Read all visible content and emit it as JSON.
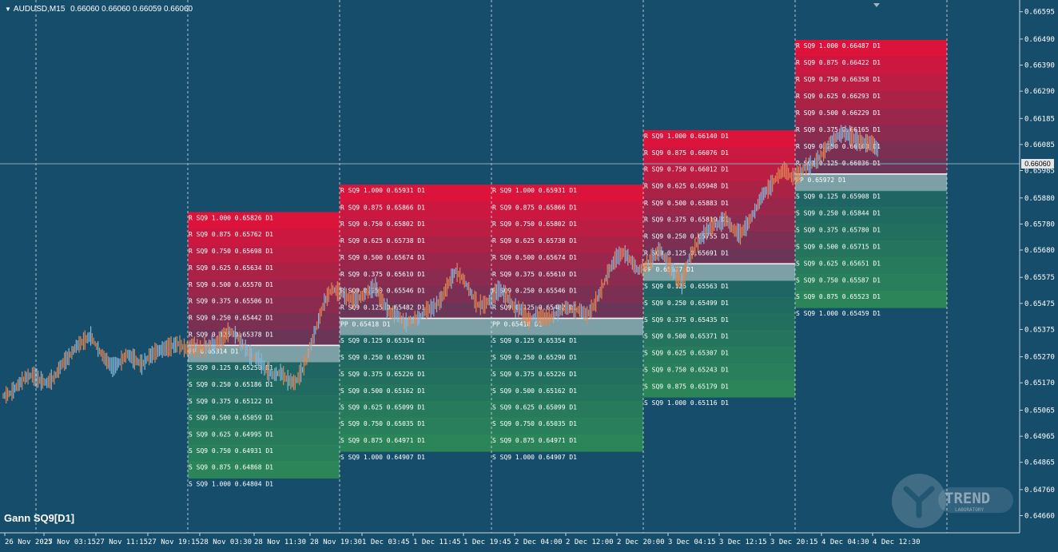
{
  "header": {
    "symbol": "AUDUSD,M15",
    "ohlc": "0.66060 0.66060 0.66059 0.66060"
  },
  "indicator_name": "Gann SQ9[D1]",
  "current_price": "0.66060",
  "price_axis": [
    "0.66595",
    "0.66490",
    "0.66390",
    "0.66290",
    "0.66185",
    "0.66085",
    "0.65985",
    "0.65880",
    "0.65780",
    "0.65680",
    "0.65575",
    "0.65475",
    "0.65375",
    "0.65270",
    "0.65170",
    "0.65065",
    "0.64965",
    "0.64865",
    "0.64760",
    "0.64660"
  ],
  "time_axis": [
    "26 Nov 2025",
    "27 Nov 03:15",
    "27 Nov 11:15",
    "27 Nov 19:15",
    "28 Nov 03:30",
    "28 Nov 11:30",
    "28 Nov 19:30",
    "1 Dec 03:45",
    "1 Dec 11:45",
    "1 Dec 19:45",
    "2 Dec 04:00",
    "2 Dec 12:00",
    "2 Dec 20:00",
    "3 Dec 04:15",
    "3 Dec 12:15",
    "3 Dec 20:15",
    "4 Dec 04:30",
    "4 Dec 12:30"
  ],
  "logo": {
    "text": "TREND",
    "subtext": "LABORATORY"
  },
  "colors": {
    "background": "#164d6b",
    "resistance": "#dc143c",
    "support": "#2e8b57",
    "pivot_line": "#ffffff",
    "candle_up": "#87b7d9",
    "candle_down": "#e08855"
  },
  "chart_data": {
    "type": "line",
    "title": "AUDUSD,M15",
    "ylim": [
      0.6461,
      0.6664
    ],
    "blocks": [
      {
        "levels": [
          {
            "label": "R SQ9 1.000 0.65826 D1",
            "price": 0.65826
          },
          {
            "label": "R SQ9 0.875 0.65762 D1",
            "price": 0.65762
          },
          {
            "label": "R SQ9 0.750 0.65698 D1",
            "price": 0.65698
          },
          {
            "label": "R SQ9 0.625 0.65634 D1",
            "price": 0.65634
          },
          {
            "label": "R SQ9 0.500 0.65570 D1",
            "price": 0.6557
          },
          {
            "label": "R SQ9 0.375 0.65506 D1",
            "price": 0.65506
          },
          {
            "label": "R SQ9 0.250 0.65442 D1",
            "price": 0.65442
          },
          {
            "label": "R SQ9 0.125 0.65378 D1",
            "price": 0.65378
          },
          {
            "label": "PP 0.65314 D1",
            "price": 0.65314
          },
          {
            "label": "S SQ9 0.125 0.65250 D1",
            "price": 0.6525
          },
          {
            "label": "S SQ9 0.250 0.65186 D1",
            "price": 0.65186
          },
          {
            "label": "S SQ9 0.375 0.65122 D1",
            "price": 0.65122
          },
          {
            "label": "S SQ9 0.500 0.65059 D1",
            "price": 0.65059
          },
          {
            "label": "S SQ9 0.625 0.64995 D1",
            "price": 0.64995
          },
          {
            "label": "S SQ9 0.750 0.64931 D1",
            "price": 0.64931
          },
          {
            "label": "S SQ9 0.875 0.64868 D1",
            "price": 0.64868
          },
          {
            "label": "S SQ9 1.000 0.64804 D1",
            "price": 0.64804
          }
        ]
      },
      {
        "levels": [
          {
            "label": "R SQ9 1.000 0.65931 D1",
            "price": 0.65931
          },
          {
            "label": "R SQ9 0.875 0.65866 D1",
            "price": 0.65866
          },
          {
            "label": "R SQ9 0.750 0.65802 D1",
            "price": 0.65802
          },
          {
            "label": "R SQ9 0.625 0.65738 D1",
            "price": 0.65738
          },
          {
            "label": "R SQ9 0.500 0.65674 D1",
            "price": 0.65674
          },
          {
            "label": "R SQ9 0.375 0.65610 D1",
            "price": 0.6561
          },
          {
            "label": "R SQ9 0.250 0.65546 D1",
            "price": 0.65546
          },
          {
            "label": "R SQ9 0.125 0.65482 D1",
            "price": 0.65482
          },
          {
            "label": "PP 0.65418 D1",
            "price": 0.65418
          },
          {
            "label": "S SQ9 0.125 0.65354 D1",
            "price": 0.65354
          },
          {
            "label": "S SQ9 0.250 0.65290 D1",
            "price": 0.6529
          },
          {
            "label": "S SQ9 0.375 0.65226 D1",
            "price": 0.65226
          },
          {
            "label": "S SQ9 0.500 0.65162 D1",
            "price": 0.65162
          },
          {
            "label": "S SQ9 0.625 0.65099 D1",
            "price": 0.65099
          },
          {
            "label": "S SQ9 0.750 0.65035 D1",
            "price": 0.65035
          },
          {
            "label": "S SQ9 0.875 0.64971 D1",
            "price": 0.64971
          },
          {
            "label": "S SQ9 1.000 0.64907 D1",
            "price": 0.64907
          }
        ]
      },
      {
        "levels": [
          {
            "label": "R SQ9 1.000 0.65931 D1",
            "price": 0.65931
          },
          {
            "label": "R SQ9 0.875 0.65866 D1",
            "price": 0.65866
          },
          {
            "label": "R SQ9 0.750 0.65802 D1",
            "price": 0.65802
          },
          {
            "label": "R SQ9 0.625 0.65738 D1",
            "price": 0.65738
          },
          {
            "label": "R SQ9 0.500 0.65674 D1",
            "price": 0.65674
          },
          {
            "label": "R SQ9 0.375 0.65610 D1",
            "price": 0.6561
          },
          {
            "label": "R SQ9 0.250 0.65546 D1",
            "price": 0.65546
          },
          {
            "label": "R SQ9 0.125 0.65482 D1",
            "price": 0.65482
          },
          {
            "label": "PP 0.65418 D1",
            "price": 0.65418
          },
          {
            "label": "S SQ9 0.125 0.65354 D1",
            "price": 0.65354
          },
          {
            "label": "S SQ9 0.250 0.65290 D1",
            "price": 0.6529
          },
          {
            "label": "S SQ9 0.375 0.65226 D1",
            "price": 0.65226
          },
          {
            "label": "S SQ9 0.500 0.65162 D1",
            "price": 0.65162
          },
          {
            "label": "S SQ9 0.625 0.65099 D1",
            "price": 0.65099
          },
          {
            "label": "S SQ9 0.750 0.65035 D1",
            "price": 0.65035
          },
          {
            "label": "S SQ9 0.875 0.64971 D1",
            "price": 0.64971
          },
          {
            "label": "S SQ9 1.000 0.64907 D1",
            "price": 0.64907
          }
        ]
      },
      {
        "levels": [
          {
            "label": "R SQ9 1.000 0.66140 D1",
            "price": 0.6614
          },
          {
            "label": "R SQ9 0.875 0.66076 D1",
            "price": 0.66076
          },
          {
            "label": "R SQ9 0.750 0.66012 D1",
            "price": 0.66012
          },
          {
            "label": "R SQ9 0.625 0.65948 D1",
            "price": 0.65948
          },
          {
            "label": "R SQ9 0.500 0.65883 D1",
            "price": 0.65883
          },
          {
            "label": "R SQ9 0.375 0.65819 D1",
            "price": 0.65819
          },
          {
            "label": "R SQ9 0.250 0.65755 D1",
            "price": 0.65755
          },
          {
            "label": "R SQ9 0.125 0.65691 D1",
            "price": 0.65691
          },
          {
            "label": "PP 0.65627 D1",
            "price": 0.65627
          },
          {
            "label": "S SQ9 0.125 0.65563 D1",
            "price": 0.65563
          },
          {
            "label": "S SQ9 0.250 0.65499 D1",
            "price": 0.65499
          },
          {
            "label": "S SQ9 0.375 0.65435 D1",
            "price": 0.65435
          },
          {
            "label": "S SQ9 0.500 0.65371 D1",
            "price": 0.65371
          },
          {
            "label": "S SQ9 0.625 0.65307 D1",
            "price": 0.65307
          },
          {
            "label": "S SQ9 0.750 0.65243 D1",
            "price": 0.65243
          },
          {
            "label": "S SQ9 0.875 0.65179 D1",
            "price": 0.65179
          },
          {
            "label": "S SQ9 1.000 0.65116 D1",
            "price": 0.65116
          }
        ]
      },
      {
        "levels": [
          {
            "label": "R SQ9 1.000 0.66487 D1",
            "price": 0.66487
          },
          {
            "label": "R SQ9 0.875 0.66422 D1",
            "price": 0.66422
          },
          {
            "label": "R SQ9 0.750 0.66358 D1",
            "price": 0.66358
          },
          {
            "label": "R SQ9 0.625 0.66293 D1",
            "price": 0.66293
          },
          {
            "label": "R SQ9 0.500 0.66229 D1",
            "price": 0.66229
          },
          {
            "label": "R SQ9 0.375 0.66165 D1",
            "price": 0.66165
          },
          {
            "label": "R SQ9 0.250 0.66100 D1",
            "price": 0.661
          },
          {
            "label": "R SQ9 0.125 0.66036 D1",
            "price": 0.66036
          },
          {
            "label": "PP 0.65972 D1",
            "price": 0.65972
          },
          {
            "label": "S SQ9 0.125 0.65908 D1",
            "price": 0.65908
          },
          {
            "label": "S SQ9 0.250 0.65844 D1",
            "price": 0.65844
          },
          {
            "label": "S SQ9 0.375 0.65780 D1",
            "price": 0.6578
          },
          {
            "label": "S SQ9 0.500 0.65715 D1",
            "price": 0.65715
          },
          {
            "label": "S SQ9 0.625 0.65651 D1",
            "price": 0.65651
          },
          {
            "label": "S SQ9 0.750 0.65587 D1",
            "price": 0.65587
          },
          {
            "label": "S SQ9 0.875 0.65523 D1",
            "price": 0.65523
          },
          {
            "label": "S SQ9 1.000 0.65459 D1",
            "price": 0.65459
          }
        ]
      }
    ],
    "price_path": [
      0.6512,
      0.6513,
      0.6516,
      0.6519,
      0.652,
      0.6518,
      0.6517,
      0.6519,
      0.6524,
      0.6527,
      0.6531,
      0.6533,
      0.6535,
      0.653,
      0.6526,
      0.6523,
      0.6525,
      0.6528,
      0.6526,
      0.6524,
      0.6527,
      0.6529,
      0.653,
      0.6531,
      0.6532,
      0.653,
      0.6531,
      0.653,
      0.6531,
      0.6532,
      0.6534,
      0.6537,
      0.6535,
      0.6531,
      0.6527,
      0.6526,
      0.6522,
      0.652,
      0.6521,
      0.6518,
      0.6517,
      0.6522,
      0.653,
      0.6539,
      0.6548,
      0.6553,
      0.6552,
      0.655,
      0.6549,
      0.655,
      0.6552,
      0.6554,
      0.6548,
      0.6544,
      0.6543,
      0.654,
      0.6541,
      0.6542,
      0.6545,
      0.6546,
      0.6549,
      0.6555,
      0.656,
      0.6557,
      0.6552,
      0.6547,
      0.6547,
      0.655,
      0.6553,
      0.655,
      0.6546,
      0.6545,
      0.6541,
      0.6543,
      0.6542,
      0.6542,
      0.6544,
      0.6546,
      0.6545,
      0.6545,
      0.6543,
      0.6547,
      0.6553,
      0.656,
      0.6565,
      0.6567,
      0.6564,
      0.656,
      0.6562,
      0.6565,
      0.6568,
      0.6563,
      0.6559,
      0.6555,
      0.6565,
      0.657,
      0.6574,
      0.6577,
      0.6578,
      0.658,
      0.6576,
      0.6574,
      0.6578,
      0.6583,
      0.6589,
      0.6592,
      0.6596,
      0.6599,
      0.6596,
      0.6597,
      0.66,
      0.6601,
      0.6604,
      0.6608,
      0.6611,
      0.6613,
      0.6612,
      0.661,
      0.6609,
      0.6609,
      0.6606
    ]
  }
}
